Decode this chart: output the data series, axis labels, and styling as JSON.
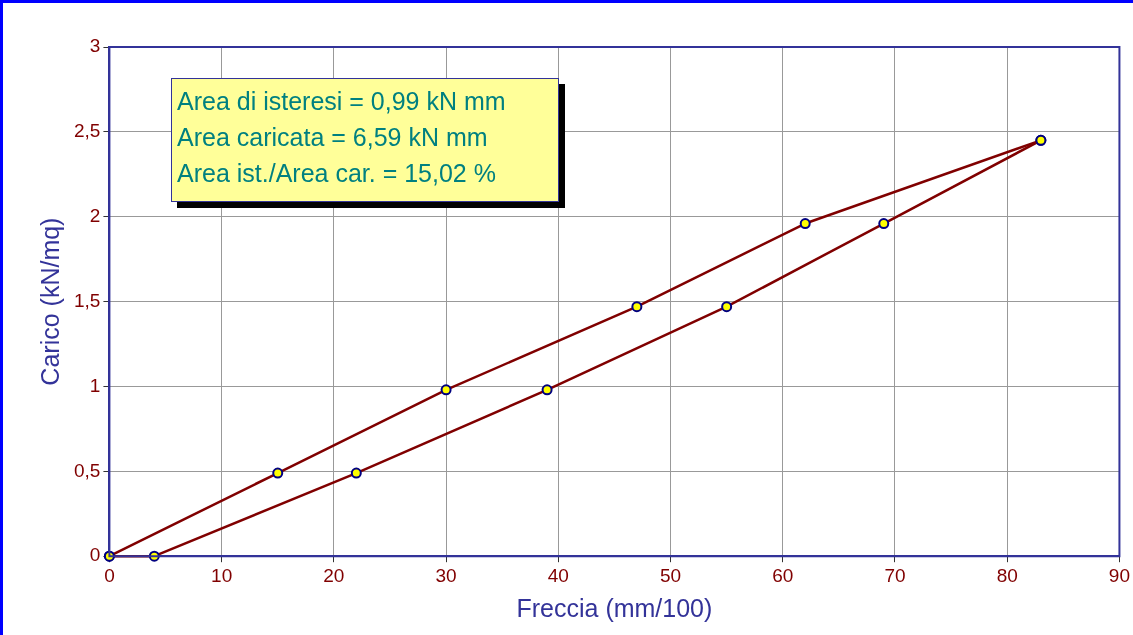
{
  "chart_data": {
    "type": "line",
    "xlabel": "Freccia (mm/100)",
    "ylabel": "Carico (kN/mq)",
    "annotations": [
      "Area di isteresi = 0,99 kN mm",
      "Area caricata = 6,59 kN mm",
      "Area ist./Area car. = 15,02 %"
    ],
    "series": [
      {
        "color": "#800000",
        "x": [
          0,
          15,
          30,
          47,
          62,
          83
        ],
        "values": [
          0,
          0.49,
          0.98,
          1.47,
          1.96,
          2.45
        ]
      },
      {
        "color": "#800000",
        "x": [
          0,
          4,
          22,
          39,
          55,
          69,
          83
        ],
        "values": [
          0,
          0,
          0.49,
          0.98,
          1.47,
          1.96,
          2.45
        ]
      }
    ],
    "xlim": [
      0,
      90
    ],
    "xticks": [
      0,
      10,
      20,
      30,
      40,
      50,
      60,
      70,
      80,
      90
    ],
    "ylim": [
      0,
      3
    ],
    "yticks": [
      0,
      {
        "value": 0.5,
        "label": "0,5"
      },
      1,
      {
        "value": 1.5,
        "label": "1,5"
      },
      2,
      {
        "value": 2.5,
        "label": "2,5"
      },
      3
    ],
    "grid": true,
    "legend": false,
    "marker": "circle",
    "line_style": "solid"
  }
}
